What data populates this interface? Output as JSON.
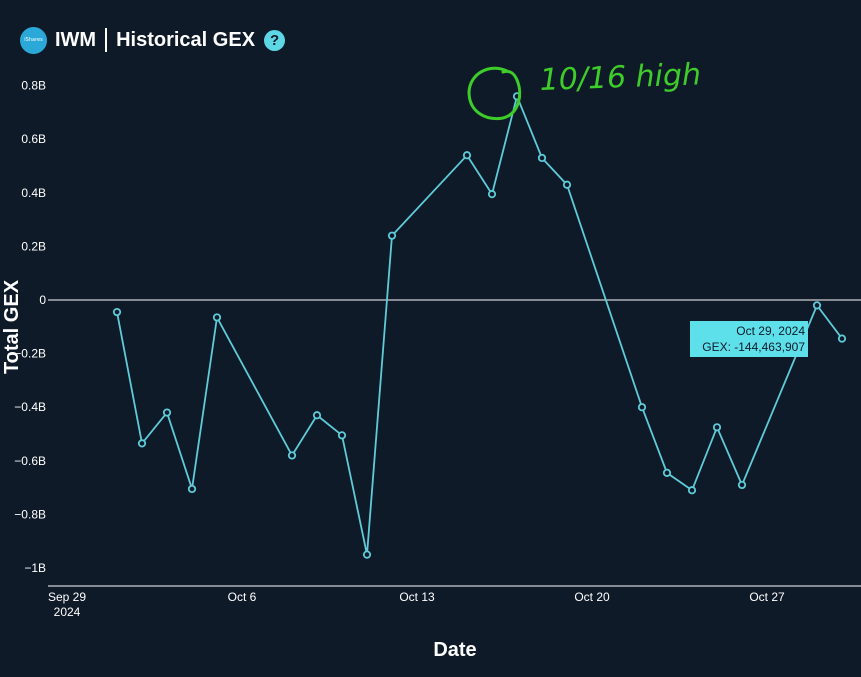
{
  "header": {
    "logo_text": "iShares",
    "ticker": "IWM",
    "title": "Historical GEX",
    "help_label": "?"
  },
  "chart_data": {
    "type": "line",
    "xlabel": "Date",
    "ylabel": "Total GEX",
    "x_tick_labels": [
      "Sep 29\n2024",
      "Oct 6",
      "Oct 13",
      "Oct 20",
      "Oct 27"
    ],
    "y_tick_labels": [
      "0.8B",
      "0.6B",
      "0.4B",
      "0.2B",
      "0",
      "−0.2B",
      "−0.4B",
      "−0.6B",
      "−0.8B",
      "−1B"
    ],
    "ylim": [
      -1.06,
      0.85
    ],
    "xlim": [
      "2024-09-29",
      "2024-10-30"
    ],
    "grid": false,
    "zero_line": true,
    "color": "#5ecbd8",
    "series": [
      {
        "x": [
          "2024-09-30",
          "2024-10-01",
          "2024-10-02",
          "2024-10-03",
          "2024-10-04",
          "2024-10-07",
          "2024-10-08",
          "2024-10-09",
          "2024-10-10",
          "2024-10-11",
          "2024-10-14",
          "2024-10-15",
          "2024-10-16",
          "2024-10-17",
          "2024-10-18",
          "2024-10-21",
          "2024-10-22",
          "2024-10-23",
          "2024-10-24",
          "2024-10-25",
          "2024-10-28",
          "2024-10-29"
        ],
        "values": [
          -0.045,
          -0.535,
          -0.42,
          -0.705,
          -0.065,
          -0.58,
          -0.43,
          -0.505,
          -0.95,
          0.24,
          0.54,
          0.395,
          0.76,
          0.53,
          0.43,
          -0.4,
          -0.645,
          -0.71,
          -0.475,
          -0.69,
          -0.02,
          -0.144
        ]
      }
    ],
    "tooltip": {
      "date": "Oct 29, 2024",
      "value_label": "GEX: -144,463,907"
    },
    "annotation": {
      "text": "10/16 high",
      "color": "#3dcc2a"
    }
  }
}
